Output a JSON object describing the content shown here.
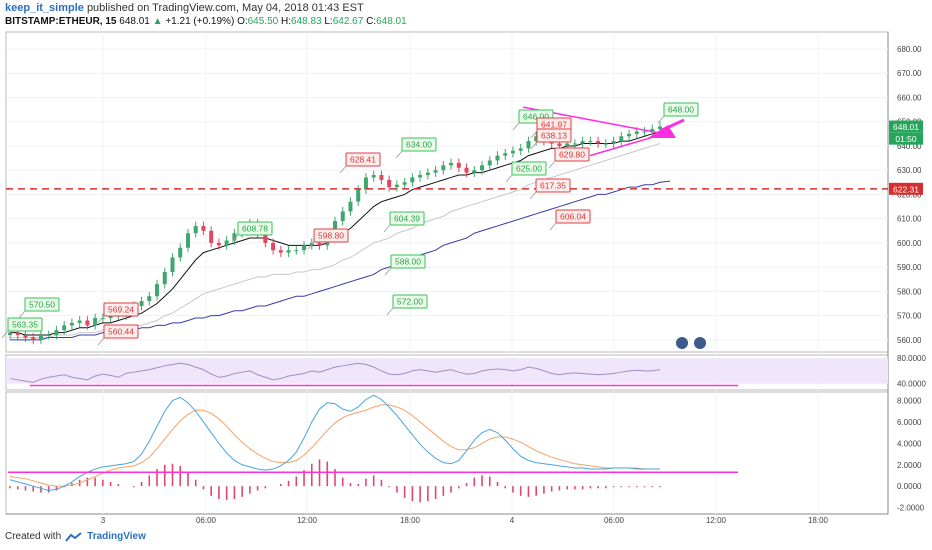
{
  "header": {
    "author": "keep_it_simple",
    "published_text": "published on TradingView.com, May 04, 2018 01:43 EST",
    "symbol": "BITSTAMP:ETHEUR, 15",
    "last": "648.01",
    "change_arrow": "▲",
    "change": "+1.21 (+0.19%)",
    "open_label": "O:",
    "open": "645.50",
    "high_label": "H:",
    "high": "648.83",
    "low_label": "L:",
    "low": "642.67",
    "close_label": "C:",
    "close": "648.01"
  },
  "footer": {
    "created_with": "Created with",
    "brand": "TradingView"
  },
  "colors": {
    "up": "#3fa66e",
    "down": "#e0475f",
    "ema_fast": "#111111",
    "ema_mid": "#c8c8c8",
    "ema_slow": "#3a3aa8",
    "support": "#d62e2e",
    "triangle": "#ff2de0",
    "rsi_fill": "#efe6fb",
    "rsi_line": "#a08fc7",
    "macd": "#4aa3df",
    "signal": "#f5a263",
    "hist": "#e0476f"
  },
  "chart_data": [
    {
      "type": "candlestick",
      "symbol": "BITSTAMP:ETHEUR, 15",
      "x_ticks": [
        "3",
        "06:00",
        "12:00",
        "18:00",
        "4",
        "06:00",
        "12:00",
        "18:00"
      ],
      "y_ticks": [
        "680.00",
        "670.00",
        "660.00",
        "650.00",
        "640.00",
        "630.00",
        "620.00",
        "610.00",
        "600.00",
        "590.00",
        "580.00",
        "570.00",
        "560.00"
      ],
      "ylim": [
        555,
        687
      ],
      "price_tags": [
        {
          "label": "648.01",
          "kind": "last"
        },
        {
          "label": "01:50",
          "kind": "countdown"
        },
        {
          "label": "622.31",
          "kind": "support"
        }
      ],
      "support_level": 622.31,
      "callouts": [
        {
          "text": "563.35",
          "kind": "high"
        },
        {
          "text": "570.50",
          "kind": "high"
        },
        {
          "text": "569.24",
          "kind": "low"
        },
        {
          "text": "560.44",
          "kind": "low"
        },
        {
          "text": "608.78",
          "kind": "high"
        },
        {
          "text": "598.80",
          "kind": "low"
        },
        {
          "text": "628.41",
          "kind": "low"
        },
        {
          "text": "634.00",
          "kind": "high"
        },
        {
          "text": "604.39",
          "kind": "high"
        },
        {
          "text": "588.00",
          "kind": "high"
        },
        {
          "text": "572.00",
          "kind": "high"
        },
        {
          "text": "646.00",
          "kind": "high"
        },
        {
          "text": "641.97",
          "kind": "low"
        },
        {
          "text": "638.13",
          "kind": "low"
        },
        {
          "text": "625.00",
          "kind": "high"
        },
        {
          "text": "629.80",
          "kind": "low"
        },
        {
          "text": "617.35",
          "kind": "low"
        },
        {
          "text": "606.04",
          "kind": "low"
        },
        {
          "text": "648.00",
          "kind": "high"
        }
      ],
      "series": [
        {
          "name": "",
          "kind": "candles",
          "close": [
            563,
            562,
            561,
            560,
            562,
            562,
            564,
            566,
            567,
            568,
            566,
            569,
            569,
            570,
            570,
            572,
            574,
            576,
            578,
            583,
            588,
            594,
            598,
            604,
            607,
            605,
            600,
            599,
            601,
            604,
            607,
            608,
            604,
            600,
            597,
            596,
            597,
            597,
            599,
            600,
            599,
            604,
            609,
            613,
            617,
            622,
            627,
            628,
            626,
            623,
            624,
            625,
            627,
            628,
            629,
            630,
            632,
            633,
            631,
            629,
            630,
            632,
            634,
            636,
            637,
            638,
            639,
            642,
            644,
            642,
            641,
            640,
            641,
            641,
            642,
            642,
            641,
            641,
            642,
            644,
            645,
            646,
            646,
            647,
            648
          ]
        },
        {
          "name": "",
          "kind": "ema",
          "values": [
            563,
            563,
            562,
            562,
            562,
            562,
            563,
            563,
            564,
            565,
            565,
            566,
            567,
            567,
            568,
            569,
            570,
            571,
            573,
            575,
            578,
            581,
            585,
            589,
            593,
            596,
            597,
            598,
            599,
            600,
            601,
            602,
            602,
            602,
            601,
            600,
            599,
            599,
            599,
            599,
            599,
            600,
            602,
            604,
            606,
            609,
            612,
            615,
            617,
            618,
            619,
            620,
            622,
            623,
            624,
            625,
            626,
            627,
            628,
            628,
            629,
            629,
            630,
            631,
            632,
            633,
            634,
            636,
            637,
            638,
            639,
            639,
            640,
            640,
            641,
            641,
            641,
            641,
            641,
            642,
            642,
            643,
            644,
            645,
            646
          ]
        },
        {
          "name": "",
          "kind": "ema",
          "values": [
            561,
            561,
            561,
            561,
            561,
            561,
            562,
            562,
            562,
            563,
            563,
            563,
            564,
            564,
            565,
            565,
            566,
            566,
            567,
            568,
            570,
            571,
            573,
            575,
            577,
            579,
            580,
            581,
            582,
            583,
            584,
            585,
            586,
            586,
            587,
            587,
            587,
            588,
            588,
            589,
            589,
            590,
            591,
            593,
            594,
            596,
            598,
            600,
            601,
            602,
            604,
            605,
            606,
            608,
            609,
            610,
            611,
            613,
            614,
            615,
            616,
            617,
            618,
            619,
            620,
            621,
            622,
            624,
            625,
            626,
            627,
            628,
            629,
            630,
            631,
            632,
            633,
            634,
            635,
            636,
            637,
            638,
            639,
            640,
            641
          ]
        },
        {
          "name": "",
          "kind": "ema",
          "values": [
            560,
            560,
            560,
            560,
            560,
            561,
            561,
            561,
            561,
            562,
            562,
            562,
            563,
            563,
            563,
            564,
            564,
            565,
            565,
            566,
            566,
            567,
            567,
            568,
            569,
            569,
            570,
            570,
            571,
            572,
            572,
            573,
            574,
            574,
            575,
            576,
            577,
            578,
            578,
            579,
            580,
            581,
            582,
            583,
            584,
            585,
            586,
            587,
            589,
            590,
            591,
            592,
            594,
            595,
            596,
            597,
            599,
            600,
            601,
            602,
            604,
            605,
            606,
            607,
            608,
            609,
            610,
            611,
            612,
            613,
            614,
            615,
            616,
            617,
            618,
            619,
            620,
            620,
            621,
            622,
            623,
            623,
            624,
            624,
            625
          ]
        }
      ]
    },
    {
      "type": "line",
      "name": "RSI",
      "y_ticks": [
        "80.0000",
        "40.0000"
      ],
      "ylim": [
        30,
        85
      ],
      "level": 37,
      "series": [
        {
          "name": "",
          "values": [
            48,
            46,
            44,
            42,
            47,
            50,
            52,
            54,
            50,
            48,
            46,
            52,
            55,
            53,
            50,
            56,
            58,
            60,
            62,
            65,
            68,
            70,
            72,
            70,
            66,
            62,
            55,
            50,
            52,
            56,
            58,
            60,
            54,
            50,
            46,
            48,
            52,
            54,
            56,
            60,
            58,
            62,
            66,
            68,
            70,
            72,
            70,
            66,
            60,
            55,
            54,
            56,
            60,
            62,
            60,
            58,
            60,
            62,
            58,
            55,
            56,
            60,
            62,
            63,
            62,
            60,
            62,
            66,
            64,
            60,
            56,
            54,
            56,
            57,
            56,
            55,
            54,
            55,
            56,
            58,
            60,
            61,
            60,
            60,
            62
          ]
        }
      ]
    },
    {
      "type": "line",
      "name": "MACD",
      "y_ticks": [
        "8.0000",
        "6.0000",
        "4.0000",
        "2.0000",
        "0.0000",
        "-2.0000"
      ],
      "ylim": [
        -2.6,
        8.8
      ],
      "level": 1.3,
      "series": [
        {
          "name": "",
          "kind": "macd",
          "values": [
            0.6,
            0.4,
            0.2,
            0.0,
            -0.2,
            -0.4,
            -0.3,
            0.0,
            0.4,
            0.9,
            1.3,
            1.6,
            1.8,
            1.9,
            2.0,
            2.1,
            2.3,
            3.0,
            4.2,
            5.6,
            7.0,
            8.0,
            8.3,
            7.8,
            7.0,
            6.0,
            5.0,
            4.0,
            3.1,
            2.4,
            2.0,
            1.8,
            1.6,
            1.5,
            1.6,
            1.9,
            2.4,
            3.2,
            4.5,
            6.0,
            7.2,
            7.8,
            7.7,
            7.2,
            7.0,
            7.4,
            8.1,
            8.5,
            8.1,
            7.4,
            6.6,
            5.7,
            4.8,
            3.9,
            3.2,
            2.6,
            2.2,
            2.1,
            2.4,
            3.3,
            4.3,
            5.0,
            5.3,
            5.0,
            4.3,
            3.5,
            2.8,
            2.4,
            2.2,
            2.1,
            2.0,
            1.9,
            1.8,
            1.7,
            1.7,
            1.6,
            1.6,
            1.6,
            1.7,
            1.7,
            1.7,
            1.6,
            1.6,
            1.6,
            1.6
          ]
        },
        {
          "name": "",
          "kind": "signal",
          "values": [
            0.9,
            0.8,
            0.7,
            0.5,
            0.3,
            0.1,
            0.0,
            0.0,
            0.1,
            0.3,
            0.6,
            0.9,
            1.2,
            1.5,
            1.7,
            1.8,
            1.9,
            2.2,
            2.7,
            3.5,
            4.4,
            5.3,
            6.1,
            6.7,
            7.1,
            7.1,
            6.8,
            6.3,
            5.6,
            4.8,
            4.1,
            3.5,
            3.0,
            2.6,
            2.3,
            2.2,
            2.2,
            2.4,
            2.9,
            3.6,
            4.4,
            5.2,
            5.9,
            6.4,
            6.7,
            6.9,
            7.1,
            7.4,
            7.6,
            7.6,
            7.4,
            7.1,
            6.6,
            6.0,
            5.4,
            4.8,
            4.2,
            3.7,
            3.4,
            3.4,
            3.6,
            4.0,
            4.4,
            4.6,
            4.6,
            4.4,
            4.1,
            3.7,
            3.3,
            3.0,
            2.7,
            2.5,
            2.3,
            2.1,
            2.0,
            1.9,
            1.8,
            1.7,
            1.7,
            1.7,
            1.7,
            1.7,
            1.6,
            1.6,
            1.6
          ]
        },
        {
          "name": "",
          "kind": "histogram",
          "values": [
            -0.2,
            -0.3,
            -0.4,
            -0.5,
            -0.6,
            -0.6,
            -0.4,
            -0.1,
            0.3,
            0.6,
            0.8,
            0.8,
            0.6,
            0.4,
            0.2,
            0.0,
            -0.1,
            0.4,
            1.0,
            1.6,
            2.0,
            2.1,
            1.9,
            1.3,
            0.6,
            -0.3,
            -0.9,
            -1.2,
            -1.3,
            -1.2,
            -1.0,
            -0.7,
            -0.4,
            -0.2,
            0.0,
            0.2,
            0.5,
            0.9,
            1.5,
            2.1,
            2.5,
            2.3,
            1.6,
            0.8,
            0.3,
            0.2,
            0.7,
            1.0,
            0.6,
            -0.1,
            -0.6,
            -1.1,
            -1.4,
            -1.5,
            -1.4,
            -1.2,
            -0.9,
            -0.6,
            -0.2,
            0.3,
            0.8,
            1.0,
            0.9,
            0.4,
            -0.2,
            -0.6,
            -0.9,
            -1.0,
            -0.9,
            -0.7,
            -0.5,
            -0.4,
            -0.3,
            -0.3,
            -0.3,
            -0.2,
            -0.2,
            -0.2,
            -0.1,
            -0.1,
            -0.1,
            -0.1,
            -0.1,
            -0.1,
            -0.1
          ]
        }
      ]
    }
  ]
}
